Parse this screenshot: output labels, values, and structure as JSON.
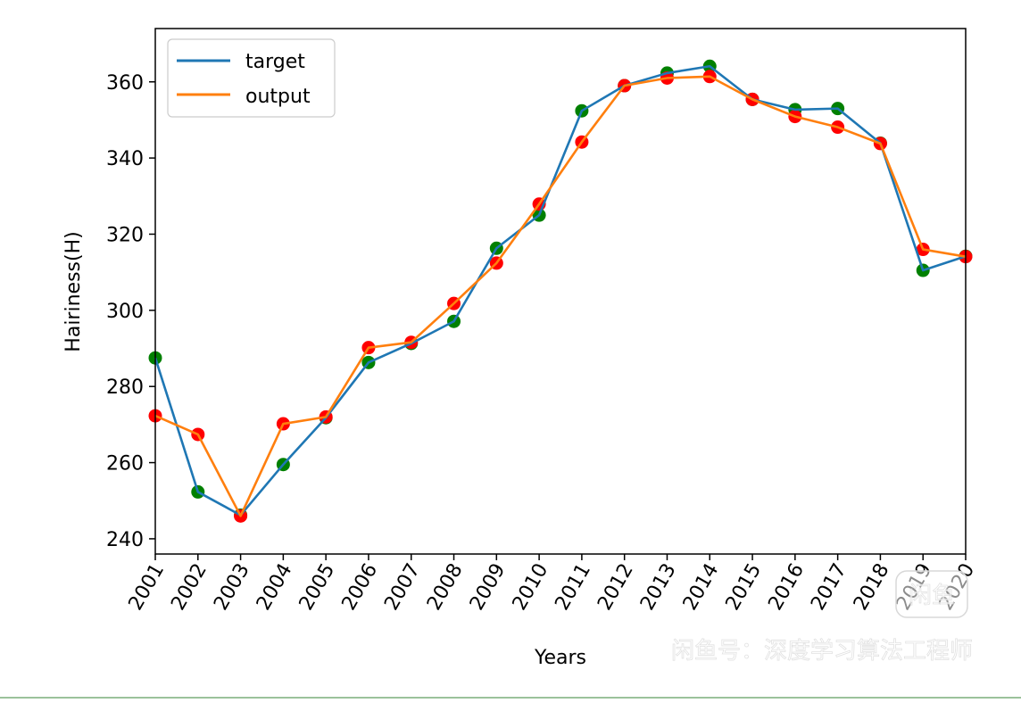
{
  "chart_data": {
    "type": "line",
    "title": "",
    "xlabel": "Years",
    "ylabel": "Hairiness(H)",
    "categories": [
      "2001",
      "2002",
      "2003",
      "2004",
      "2005",
      "2006",
      "2007",
      "2008",
      "2009",
      "2010",
      "2011",
      "2012",
      "2013",
      "2014",
      "2015",
      "2016",
      "2017",
      "2018",
      "2019",
      "2020"
    ],
    "ylim": [
      236,
      374
    ],
    "yticks": [
      240,
      260,
      280,
      300,
      320,
      340,
      360
    ],
    "legend_position": "top-left",
    "series": [
      {
        "name": "target",
        "line_color": "#1f77b4",
        "marker_color": "#008000",
        "values": [
          287.5,
          252.3,
          246.2,
          259.5,
          271.8,
          286.3,
          291.3,
          297.1,
          316.3,
          325.0,
          352.4,
          359.0,
          362.3,
          364.1,
          355.4,
          352.7,
          353.0,
          343.9,
          310.5,
          314.2
        ]
      },
      {
        "name": "output",
        "line_color": "#ff7f0e",
        "marker_color": "#ff0000",
        "values": [
          272.3,
          267.4,
          246.0,
          270.2,
          272.0,
          290.2,
          291.6,
          301.8,
          312.4,
          327.9,
          344.2,
          359.0,
          361.0,
          361.4,
          355.4,
          350.9,
          348.1,
          343.8,
          316.0,
          314.1
        ]
      }
    ]
  },
  "watermark": {
    "text": "闲鱼号：深度学习算法工程师",
    "logo_text": "闲鱼"
  }
}
